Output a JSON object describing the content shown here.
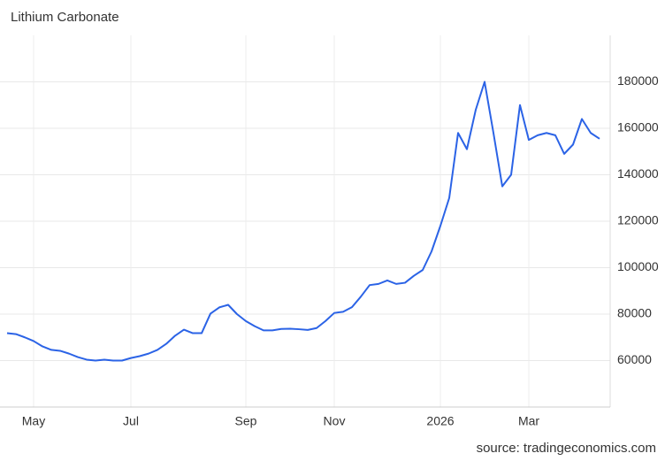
{
  "chart_data": {
    "type": "line",
    "title": "Lithium Carbonate",
    "source": "source: tradingeconomics.com",
    "categories": [
      null,
      null,
      null,
      "May",
      null,
      null,
      null,
      null,
      null,
      null,
      null,
      null,
      null,
      null,
      "Jul",
      null,
      null,
      null,
      null,
      null,
      null,
      null,
      null,
      null,
      null,
      null,
      null,
      "Sep",
      null,
      null,
      null,
      null,
      null,
      null,
      null,
      null,
      null,
      "Nov",
      null,
      null,
      null,
      null,
      null,
      null,
      null,
      null,
      null,
      null,
      null,
      "2026",
      null,
      null,
      null,
      null,
      null,
      null,
      null,
      null,
      null,
      "Mar",
      null,
      null,
      null,
      null,
      null,
      null,
      null,
      null
    ],
    "series": [
      {
        "name": "Lithium Carbonate",
        "color": "#2b63e6",
        "values": [
          71800,
          71400,
          70000,
          68400,
          66100,
          64600,
          64200,
          63000,
          61500,
          60400,
          60000,
          60400,
          60000,
          60000,
          61100,
          61900,
          63000,
          64600,
          67200,
          70700,
          73300,
          71800,
          71800,
          80200,
          82900,
          84000,
          80000,
          77000,
          74800,
          73000,
          73000,
          73600,
          73700,
          73500,
          73200,
          74000,
          77000,
          80500,
          81000,
          83000,
          87500,
          92500,
          93000,
          94500,
          93000,
          93500,
          96500,
          99000,
          107000,
          118000,
          130000,
          158000,
          151000,
          168000,
          180000,
          158000,
          135000,
          140000,
          170000,
          155000,
          157000,
          158000,
          157000,
          149000,
          153000,
          164000,
          158000,
          155500
        ]
      }
    ],
    "ylim": [
      40000,
      200000
    ],
    "yticks": [
      60000,
      80000,
      100000,
      120000,
      140000,
      160000,
      180000
    ],
    "grid": true
  }
}
